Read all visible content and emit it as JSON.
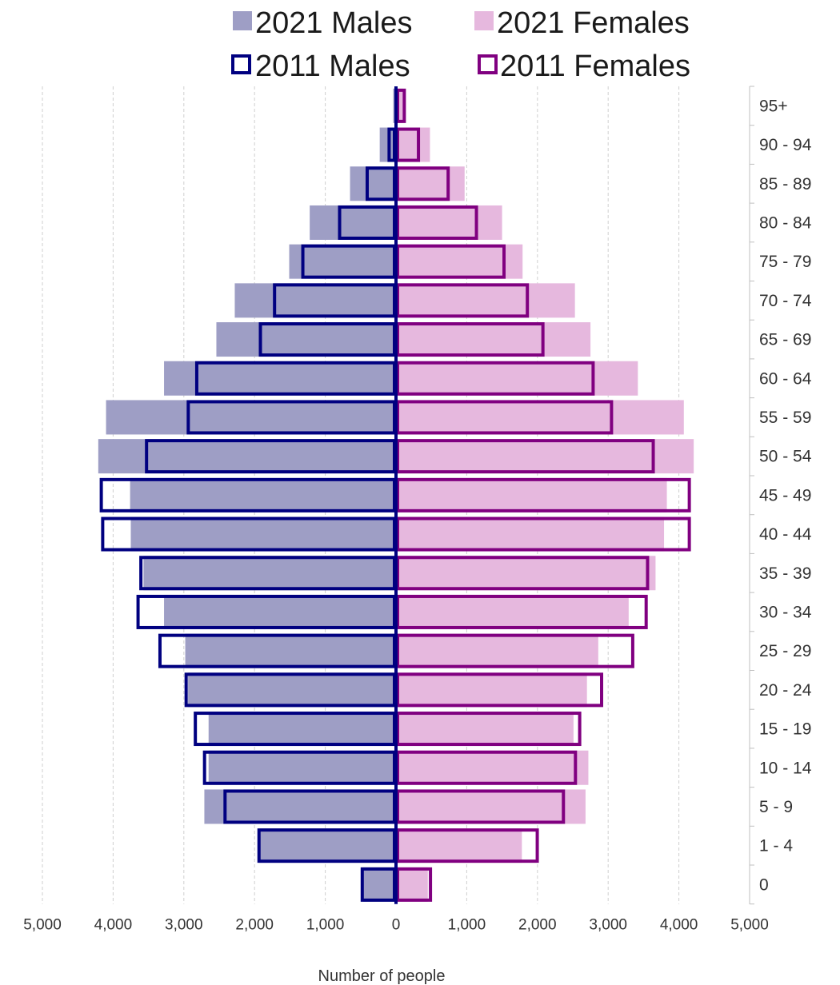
{
  "chart_data": {
    "type": "bar",
    "orientation": "horizontal-pyramid",
    "categories": [
      "95+",
      "90 - 94",
      "85 - 89",
      "80 - 84",
      "75 - 79",
      "70 - 74",
      "65 - 69",
      "60 - 64",
      "55 - 59",
      "50 - 54",
      "45 - 49",
      "40 - 44",
      "35 - 39",
      "30 - 34",
      "25 - 29",
      "20 - 24",
      "15 - 19",
      "10 - 14",
      "5 - 9",
      "1 - 4",
      "0"
    ],
    "series": [
      {
        "name": "2021 Males",
        "side": "left",
        "style": "filled",
        "color": "#9e9ec5",
        "values": [
          40,
          230,
          650,
          1220,
          1510,
          2280,
          2540,
          3280,
          4100,
          4210,
          3760,
          3750,
          3570,
          3280,
          2980,
          2940,
          2650,
          2650,
          2710,
          1930,
          470
        ]
      },
      {
        "name": "2021 Females",
        "side": "right",
        "style": "filled",
        "color": "#e6b8de",
        "values": [
          100,
          480,
          970,
          1500,
          1790,
          2530,
          2750,
          3420,
          4070,
          4210,
          3830,
          3790,
          3670,
          3290,
          2860,
          2700,
          2510,
          2720,
          2680,
          1780,
          450
        ]
      },
      {
        "name": "2011 Males",
        "side": "left",
        "style": "outline",
        "color": "#000080",
        "values": [
          40,
          120,
          430,
          820,
          1340,
          1740,
          1940,
          2840,
          2960,
          3550,
          4190,
          4170,
          3630,
          3670,
          3360,
          2990,
          2860,
          2730,
          2440,
          1960,
          500
        ]
      },
      {
        "name": "2011 Females",
        "side": "right",
        "style": "outline",
        "color": "#800080",
        "values": [
          140,
          340,
          760,
          1160,
          1550,
          1880,
          2100,
          2810,
          3070,
          3660,
          4170,
          4170,
          3580,
          3560,
          3370,
          2930,
          2620,
          2560,
          2390,
          2020,
          510
        ]
      }
    ],
    "xlim": [
      -5000,
      5000
    ],
    "xticks": [
      "5,000",
      "4,000",
      "3,000",
      "2,000",
      "1,000",
      "0",
      "1,000",
      "2,000",
      "3,000",
      "4,000",
      "5,000"
    ],
    "xlabel": "Number of people",
    "ylabel": "",
    "grid": "vertical-dashed",
    "legend": "top"
  }
}
